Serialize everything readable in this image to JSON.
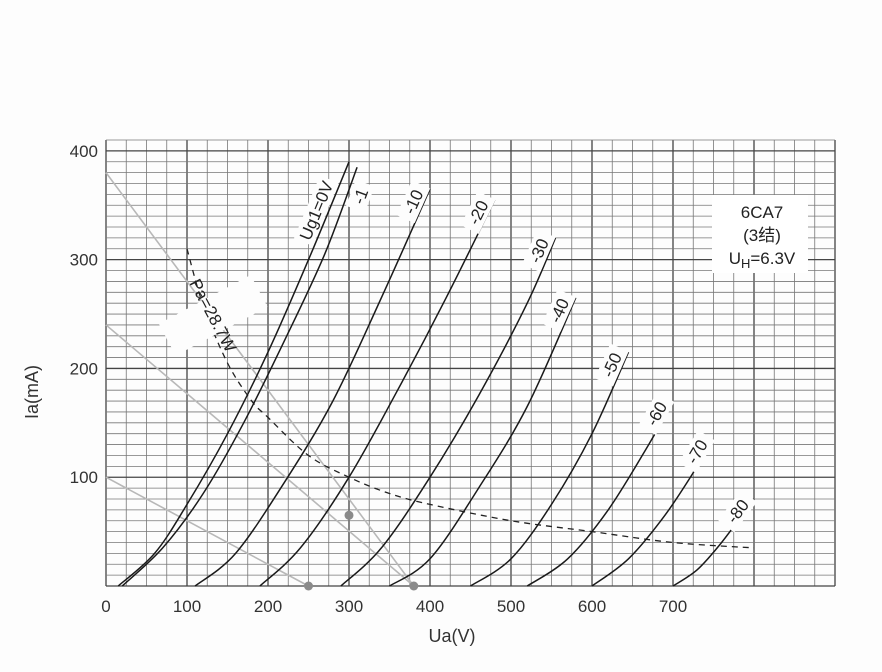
{
  "chart_data": {
    "type": "line",
    "title": "",
    "xlabel": "Ua(V)",
    "ylabel": "Ia(mA)",
    "xlim": [
      0,
      900
    ],
    "ylim": [
      0,
      410
    ],
    "x_ticks": [
      "0",
      "100",
      "200",
      "300",
      "400",
      "500",
      "600",
      "700"
    ],
    "y_ticks": [
      "100",
      "200",
      "300",
      "400"
    ],
    "grid": true,
    "info_box": {
      "line1": "6CA7",
      "line2": "(3结)",
      "line3_main": "U",
      "line3_sub": "H",
      "line3_rest": "=6.3V"
    },
    "series": [
      {
        "name": "Ug1=0V",
        "x": [
          15,
          60,
          100,
          150,
          200,
          250,
          300
        ],
        "y": [
          0,
          30,
          75,
          140,
          215,
          300,
          390
        ]
      },
      {
        "name": "-1",
        "x": [
          20,
          70,
          120,
          170,
          220,
          270,
          310
        ],
        "y": [
          0,
          35,
          85,
          150,
          225,
          305,
          385
        ]
      },
      {
        "name": "-10",
        "x": [
          110,
          160,
          220,
          280,
          340,
          400
        ],
        "y": [
          0,
          30,
          95,
          170,
          265,
          365
        ]
      },
      {
        "name": "-20",
        "x": [
          190,
          240,
          300,
          360,
          420,
          480
        ],
        "y": [
          0,
          35,
          100,
          180,
          265,
          355
        ]
      },
      {
        "name": "-30",
        "x": [
          290,
          340,
          400,
          460,
          520,
          555
        ],
        "y": [
          0,
          35,
          100,
          175,
          260,
          320
        ]
      },
      {
        "name": "-40",
        "x": [
          350,
          400,
          460,
          520,
          580
        ],
        "y": [
          0,
          25,
          90,
          165,
          265
        ]
      },
      {
        "name": "-50",
        "x": [
          450,
          500,
          550,
          600,
          645
        ],
        "y": [
          0,
          25,
          75,
          140,
          215
        ]
      },
      {
        "name": "-60",
        "x": [
          520,
          570,
          620,
          670,
          700
        ],
        "y": [
          0,
          25,
          70,
          130,
          170
        ]
      },
      {
        "name": "-70",
        "x": [
          600,
          645,
          690,
          730,
          750
        ],
        "y": [
          0,
          25,
          65,
          110,
          135
        ]
      },
      {
        "name": "-80",
        "x": [
          700,
          730,
          760,
          790,
          800
        ],
        "y": [
          0,
          15,
          40,
          70,
          80
        ]
      }
    ],
    "power_curve": {
      "name": "Pa=28.7W",
      "x": [
        100,
        120,
        150,
        180,
        200,
        250,
        300,
        350,
        400,
        500,
        600,
        700,
        800
      ],
      "y": [
        310,
        258,
        205,
        170,
        155,
        120,
        100,
        85,
        75,
        60,
        50,
        40,
        35
      ]
    },
    "load_lines": [
      {
        "x": [
          0,
          380
        ],
        "y": [
          380,
          0
        ]
      },
      {
        "x": [
          0,
          380
        ],
        "y": [
          240,
          0
        ]
      },
      {
        "x": [
          0,
          250
        ],
        "y": [
          100,
          0
        ]
      }
    ],
    "points": [
      {
        "x": 250,
        "y": 0
      },
      {
        "x": 300,
        "y": 65
      },
      {
        "x": 380,
        "y": 0
      }
    ]
  }
}
